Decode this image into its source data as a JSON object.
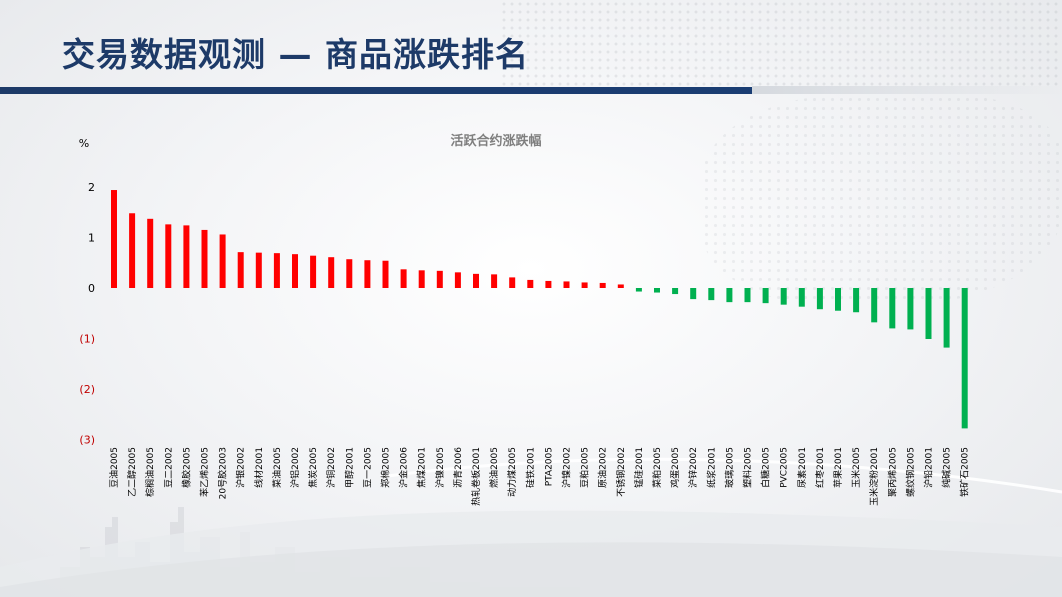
{
  "slide": {
    "title": "交易数据观测 — 商品涨跌排名"
  },
  "colors": {
    "up": "#ff0000",
    "down": "#00b050",
    "negative_tick": "#c00000",
    "title": "#1d3a68"
  },
  "chart_data": {
    "type": "bar",
    "title": "活跃合约涨跌幅",
    "ylabel": "%",
    "ylim": [
      -3,
      2
    ],
    "yticks": [
      2,
      1,
      0,
      -1,
      -2,
      -3
    ],
    "ytick_labels": [
      "2",
      "1",
      "0",
      "(1)",
      "(2)",
      "(3)"
    ],
    "grid": false,
    "legend": "none",
    "categories": [
      "豆油2005",
      "乙二醇2005",
      "棕榈油2005",
      "豆二2002",
      "橡胶2005",
      "苯乙烯2005",
      "20号胶2003",
      "沪银2002",
      "线材2001",
      "菜油2005",
      "沪铝2002",
      "焦炭2005",
      "沪铜2002",
      "甲醇2001",
      "豆一2005",
      "郑棉2005",
      "沪金2006",
      "焦煤2001",
      "沪镍2005",
      "沥青2006",
      "热轧卷板2001",
      "燃油2005",
      "动力煤2005",
      "硅铁2001",
      "PTA2005",
      "沪镍2002",
      "豆粕2005",
      "原油2002",
      "不锈钢2002",
      "锰硅2001",
      "菜粕2005",
      "鸡蛋2005",
      "沪锌2002",
      "纸浆2001",
      "玻璃2005",
      "塑料2005",
      "白糖2005",
      "PVC2005",
      "尿素2001",
      "红枣2001",
      "苹果2001",
      "玉米2005",
      "玉米淀粉2001",
      "聚丙烯2005",
      "螺纹钢2005",
      "沪铅2001",
      "纯碱2005",
      "铁矿石2005"
    ],
    "values": [
      1.94,
      1.48,
      1.37,
      1.26,
      1.24,
      1.15,
      1.06,
      0.71,
      0.7,
      0.69,
      0.67,
      0.64,
      0.61,
      0.57,
      0.55,
      0.54,
      0.37,
      0.35,
      0.34,
      0.31,
      0.28,
      0.27,
      0.21,
      0.16,
      0.14,
      0.13,
      0.11,
      0.1,
      0.07,
      -0.07,
      -0.09,
      -0.12,
      -0.22,
      -0.24,
      -0.28,
      -0.28,
      -0.3,
      -0.33,
      -0.37,
      -0.42,
      -0.45,
      -0.48,
      -0.68,
      -0.8,
      -0.82,
      -1.01,
      -1.18,
      -2.78
    ]
  }
}
